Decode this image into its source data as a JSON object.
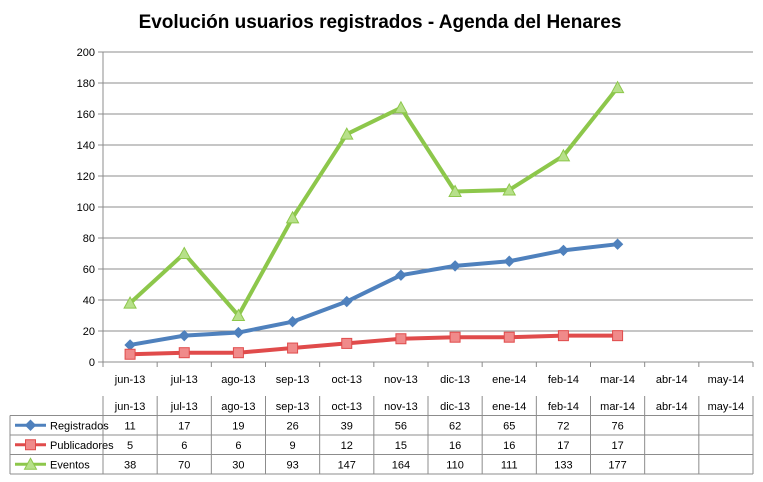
{
  "chart_data": {
    "type": "line",
    "title": "Evolución usuarios registrados - Agenda del Henares",
    "categories": [
      "jun-13",
      "jul-13",
      "ago-13",
      "sep-13",
      "oct-13",
      "nov-13",
      "dic-13",
      "ene-14",
      "feb-14",
      "mar-14",
      "abr-14",
      "may-14"
    ],
    "ylim": [
      0,
      200
    ],
    "yticks": [
      "0",
      "20",
      "40",
      "60",
      "80",
      "100",
      "120",
      "140",
      "160",
      "180",
      "200"
    ],
    "grid": true,
    "legend": "data-table",
    "series": [
      {
        "name": "Registrados",
        "color": "#4f81bd",
        "marker": "diamond",
        "marker_fill": "#4f81bd",
        "values": [
          11,
          17,
          19,
          26,
          39,
          56,
          62,
          65,
          72,
          76,
          null,
          null
        ]
      },
      {
        "name": "Publicadores",
        "color": "#e04b4b",
        "marker": "square",
        "marker_fill": "#f08a8a",
        "values": [
          5,
          6,
          6,
          9,
          12,
          15,
          16,
          16,
          17,
          17,
          null,
          null
        ]
      },
      {
        "name": "Eventos",
        "color": "#8dc74b",
        "marker": "triangle",
        "marker_fill": "#b7e08a",
        "values": [
          38,
          70,
          30,
          93,
          147,
          164,
          110,
          111,
          133,
          177,
          null,
          null
        ]
      }
    ]
  }
}
